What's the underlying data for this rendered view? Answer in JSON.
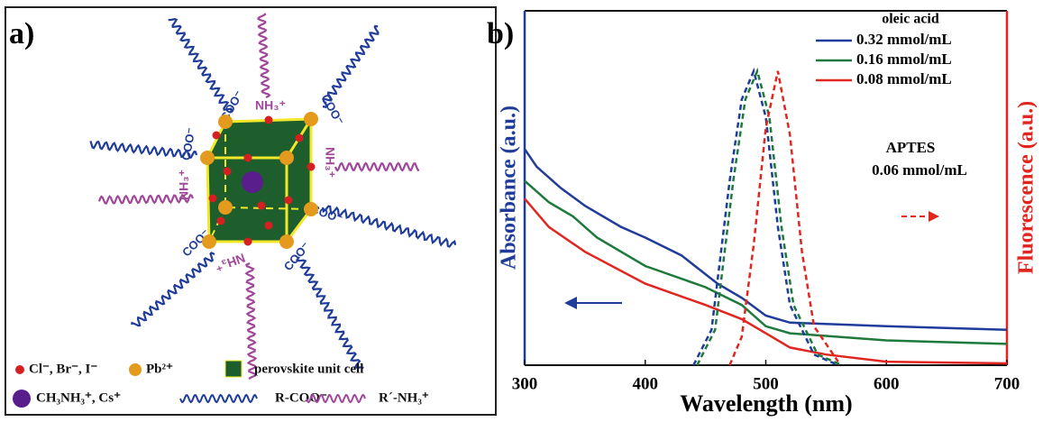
{
  "panel_a": {
    "label": "a)",
    "coo": "COO⁻",
    "nh3": "NH₃⁺",
    "legend": {
      "halide": "Cl⁻, Br⁻, I⁻",
      "lead": "Pb²⁺",
      "cell": "perovskite unit cell",
      "cation": "CH₃NH₃⁺, Cs⁺",
      "acid": "R-COO⁻",
      "amine": "R´-NH₃⁺"
    }
  },
  "chart_data": {
    "type": "line",
    "panel_label": "b)",
    "xlabel": "Wavelength (nm)",
    "ylabel": "Absorbance (a.u.)",
    "y2label": "Fluorescence (a.u.)",
    "annotations": [
      "oleic acid",
      "APTES",
      "0.06 mmol/mL"
    ],
    "xlim": [
      300,
      700
    ],
    "xticks": [
      300,
      400,
      500,
      600,
      700
    ],
    "ylim": [
      0,
      100
    ],
    "series": [
      {
        "name": "0.32 mmol/mL",
        "color": "#1f3c9a",
        "style": "solid",
        "x": [
          300,
          310,
          330,
          350,
          380,
          400,
          430,
          460,
          480,
          500,
          520,
          600,
          700
        ],
        "values": [
          61,
          56,
          50,
          45,
          39,
          36,
          31,
          23,
          19,
          14,
          12,
          11,
          10
        ]
      },
      {
        "name": "0.16 mmol/mL",
        "color": "#1e7a3c",
        "style": "solid",
        "x": [
          300,
          320,
          340,
          360,
          400,
          450,
          480,
          500,
          520,
          600,
          700
        ],
        "values": [
          52,
          46,
          42,
          36,
          28,
          22,
          17,
          11,
          9,
          7,
          6
        ]
      },
      {
        "name": "0.08 mmol/mL",
        "color": "#e0261f",
        "style": "solid",
        "x": [
          300,
          320,
          350,
          400,
          450,
          480,
          500,
          520,
          550,
          600,
          700
        ],
        "values": [
          47,
          39,
          32,
          23,
          17,
          13,
          9,
          5,
          3,
          1,
          0.5
        ]
      },
      {
        "color": "#1f3c9a",
        "style": "dashed",
        "x": [
          440,
          455,
          470,
          480,
          490,
          500,
          510,
          520,
          540,
          560
        ],
        "values": [
          0,
          10,
          52,
          75,
          83,
          70,
          39,
          17,
          3,
          0
        ]
      },
      {
        "color": "#1e7a3c",
        "style": "dashed",
        "x": [
          443,
          458,
          473,
          483,
          493,
          503,
          513,
          523,
          543,
          563
        ],
        "values": [
          0,
          10,
          52,
          75,
          83,
          70,
          39,
          17,
          3,
          0
        ]
      },
      {
        "color": "#e0261f",
        "style": "dashed",
        "x": [
          470,
          480,
          490,
          500,
          510,
          520,
          530,
          540,
          560
        ],
        "values": [
          0,
          8,
          34,
          67,
          83,
          65,
          32,
          11,
          1
        ]
      }
    ]
  }
}
